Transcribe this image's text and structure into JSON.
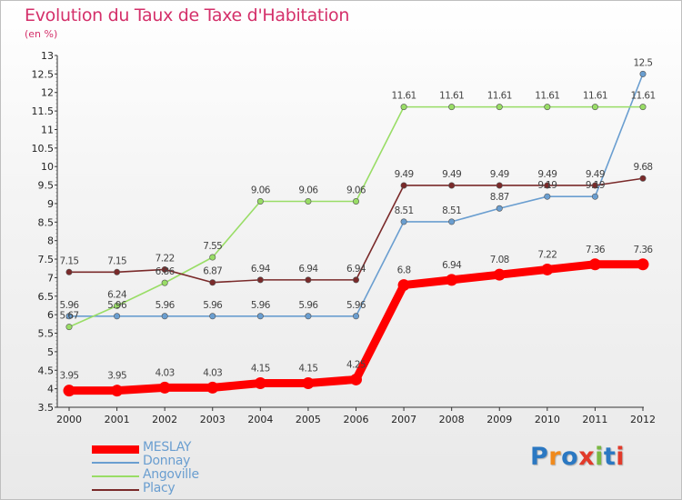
{
  "chart_data": {
    "type": "line",
    "title": "Evolution du Taux de Taxe d'Habitation",
    "subtitle": "(en %)",
    "x": [
      "2000",
      "2001",
      "2002",
      "2003",
      "2004",
      "2005",
      "2006",
      "2007",
      "2008",
      "2009",
      "2010",
      "2011",
      "2012"
    ],
    "ylim": [
      3.5,
      13
    ],
    "yticks": [
      "3.5",
      "4",
      "4.5",
      "5",
      "5.5",
      "6",
      "6.5",
      "7",
      "7.5",
      "8",
      "8.5",
      "9",
      "9.5",
      "10",
      "10.5",
      "11",
      "11.5",
      "12",
      "12.5",
      "13"
    ],
    "grid": false,
    "legend_position": "bottom-left",
    "series": [
      {
        "name": "MESLAY",
        "color": "#ff0000",
        "values": [
          3.95,
          3.95,
          4.03,
          4.03,
          4.15,
          4.15,
          4.25,
          6.8,
          6.94,
          7.08,
          7.22,
          7.36,
          7.36
        ],
        "labels": [
          "3.95",
          "3.95",
          "4.03",
          "4.03",
          "4.15",
          "4.15",
          "4.25",
          "6.8",
          "6.94",
          "7.08",
          "7.22",
          "7.36",
          "7.36"
        ]
      },
      {
        "name": "Donnay",
        "color": "#6a9ed0",
        "values": [
          5.96,
          5.96,
          5.96,
          5.96,
          5.96,
          5.96,
          5.96,
          8.51,
          8.51,
          8.87,
          9.19,
          9.19,
          12.5
        ],
        "labels": [
          "5.96",
          "5.96",
          "5.96",
          "5.96",
          "5.96",
          "5.96",
          "5.96",
          "8.51",
          "8.51",
          "8.87",
          "9.19",
          "9.19",
          "12.5"
        ]
      },
      {
        "name": "Angoville",
        "color": "#99dd66",
        "values": [
          5.67,
          6.24,
          6.86,
          7.55,
          9.06,
          9.06,
          9.06,
          11.61,
          11.61,
          11.61,
          11.61,
          11.61,
          11.61
        ],
        "labels": [
          "5.67",
          "6.24",
          "6.86",
          "7.55",
          "9.06",
          "9.06",
          "9.06",
          "11.61",
          "11.61",
          "11.61",
          "11.61",
          "11.61",
          "11.61"
        ]
      },
      {
        "name": "Placy",
        "color": "#7a2a2a",
        "values": [
          7.15,
          7.15,
          7.22,
          6.87,
          6.94,
          6.94,
          6.94,
          9.49,
          9.49,
          9.49,
          9.49,
          9.49,
          9.68
        ],
        "labels": [
          "7.15",
          "7.15",
          "7.22",
          "6.87",
          "6.94",
          "6.94",
          "6.94",
          "9.49",
          "9.49",
          "9.49",
          "9.49",
          "9.49",
          "9.68"
        ]
      }
    ]
  },
  "branding": {
    "logo_letters": [
      "P",
      "r",
      "o",
      "x",
      "i",
      "t",
      "i"
    ],
    "logo_colors": [
      "#2b78c2",
      "#f08a1c",
      "#2b78c2",
      "#e23a2a",
      "#7ab842",
      "#2b78c2",
      "#e23a2a"
    ]
  }
}
